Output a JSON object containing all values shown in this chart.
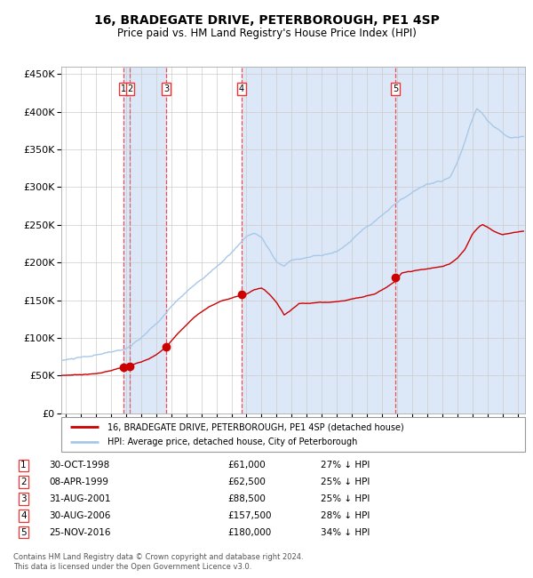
{
  "title": "16, BRADEGATE DRIVE, PETERBOROUGH, PE1 4SP",
  "subtitle": "Price paid vs. HM Land Registry's House Price Index (HPI)",
  "title_fontsize": 10,
  "subtitle_fontsize": 8.5,
  "sale_dates_decimal": [
    1998.83,
    1999.27,
    2001.66,
    2006.66,
    2016.9
  ],
  "sale_prices": [
    61000,
    62500,
    88500,
    157500,
    180000
  ],
  "sale_labels": [
    "1",
    "2",
    "3",
    "4",
    "5"
  ],
  "sale_info": [
    {
      "num": "1",
      "date": "30-OCT-1998",
      "price": "£61,000",
      "pct": "27% ↓ HPI"
    },
    {
      "num": "2",
      "date": "08-APR-1999",
      "price": "£62,500",
      "pct": "25% ↓ HPI"
    },
    {
      "num": "3",
      "date": "31-AUG-2001",
      "price": "£88,500",
      "pct": "25% ↓ HPI"
    },
    {
      "num": "4",
      "date": "30-AUG-2006",
      "price": "£157,500",
      "pct": "28% ↓ HPI"
    },
    {
      "num": "5",
      "date": "25-NOV-2016",
      "price": "£180,000",
      "pct": "34% ↓ HPI"
    }
  ],
  "legend_property": "16, BRADEGATE DRIVE, PETERBOROUGH, PE1 4SP (detached house)",
  "legend_hpi": "HPI: Average price, detached house, City of Peterborough",
  "footer": "Contains HM Land Registry data © Crown copyright and database right 2024.\nThis data is licensed under the Open Government Licence v3.0.",
  "hpi_color": "#A8C8E8",
  "property_color": "#CC0000",
  "vline_color": "#EE3333",
  "vline2_color": "#999999",
  "bg_shaded": "#DCE8F8",
  "ylim": [
    0,
    460000
  ],
  "xlim_start": 1994.7,
  "xlim_end": 2025.5,
  "hpi_anchors": [
    [
      1994.7,
      70000
    ],
    [
      1995.5,
      72000
    ],
    [
      1997.0,
      75000
    ],
    [
      1998.0,
      79000
    ],
    [
      1999.0,
      84000
    ],
    [
      2000.0,
      97000
    ],
    [
      2001.0,
      115000
    ],
    [
      2002.0,
      138000
    ],
    [
      2003.0,
      158000
    ],
    [
      2004.0,
      175000
    ],
    [
      2005.0,
      192000
    ],
    [
      2006.0,
      210000
    ],
    [
      2007.0,
      230000
    ],
    [
      2007.5,
      235000
    ],
    [
      2008.0,
      228000
    ],
    [
      2008.5,
      212000
    ],
    [
      2009.0,
      195000
    ],
    [
      2009.5,
      190000
    ],
    [
      2010.0,
      198000
    ],
    [
      2011.0,
      202000
    ],
    [
      2012.0,
      205000
    ],
    [
      2013.0,
      210000
    ],
    [
      2014.0,
      225000
    ],
    [
      2015.0,
      245000
    ],
    [
      2016.0,
      260000
    ],
    [
      2017.0,
      278000
    ],
    [
      2018.0,
      290000
    ],
    [
      2019.0,
      298000
    ],
    [
      2020.0,
      302000
    ],
    [
      2020.5,
      308000
    ],
    [
      2021.0,
      328000
    ],
    [
      2021.5,
      355000
    ],
    [
      2022.0,
      385000
    ],
    [
      2022.3,
      400000
    ],
    [
      2022.6,
      395000
    ],
    [
      2023.0,
      385000
    ],
    [
      2023.5,
      375000
    ],
    [
      2024.0,
      368000
    ],
    [
      2024.5,
      362000
    ],
    [
      2025.3,
      365000
    ]
  ],
  "prop_anchors": [
    [
      1994.7,
      50000
    ],
    [
      1995.5,
      51000
    ],
    [
      1997.0,
      53000
    ],
    [
      1998.0,
      57000
    ],
    [
      1998.83,
      61000
    ],
    [
      1999.27,
      62500
    ],
    [
      2000.0,
      68000
    ],
    [
      2001.0,
      78000
    ],
    [
      2001.66,
      88500
    ],
    [
      2002.5,
      108000
    ],
    [
      2003.5,
      128000
    ],
    [
      2004.5,
      142000
    ],
    [
      2005.5,
      151000
    ],
    [
      2006.66,
      157500
    ],
    [
      2007.0,
      159000
    ],
    [
      2007.5,
      165000
    ],
    [
      2008.0,
      168000
    ],
    [
      2008.5,
      160000
    ],
    [
      2009.0,
      149000
    ],
    [
      2009.5,
      133000
    ],
    [
      2010.0,
      140000
    ],
    [
      2010.5,
      148000
    ],
    [
      2011.5,
      150000
    ],
    [
      2012.5,
      151000
    ],
    [
      2013.5,
      153000
    ],
    [
      2014.5,
      158000
    ],
    [
      2015.5,
      163000
    ],
    [
      2016.9,
      180000
    ],
    [
      2017.3,
      190000
    ],
    [
      2017.8,
      192000
    ],
    [
      2018.5,
      194000
    ],
    [
      2019.0,
      195000
    ],
    [
      2019.5,
      197000
    ],
    [
      2020.0,
      198000
    ],
    [
      2020.5,
      202000
    ],
    [
      2021.0,
      210000
    ],
    [
      2021.5,
      222000
    ],
    [
      2022.0,
      242000
    ],
    [
      2022.5,
      253000
    ],
    [
      2022.7,
      255000
    ],
    [
      2023.0,
      252000
    ],
    [
      2023.5,
      246000
    ],
    [
      2024.0,
      242000
    ],
    [
      2024.5,
      244000
    ],
    [
      2025.3,
      247000
    ]
  ]
}
